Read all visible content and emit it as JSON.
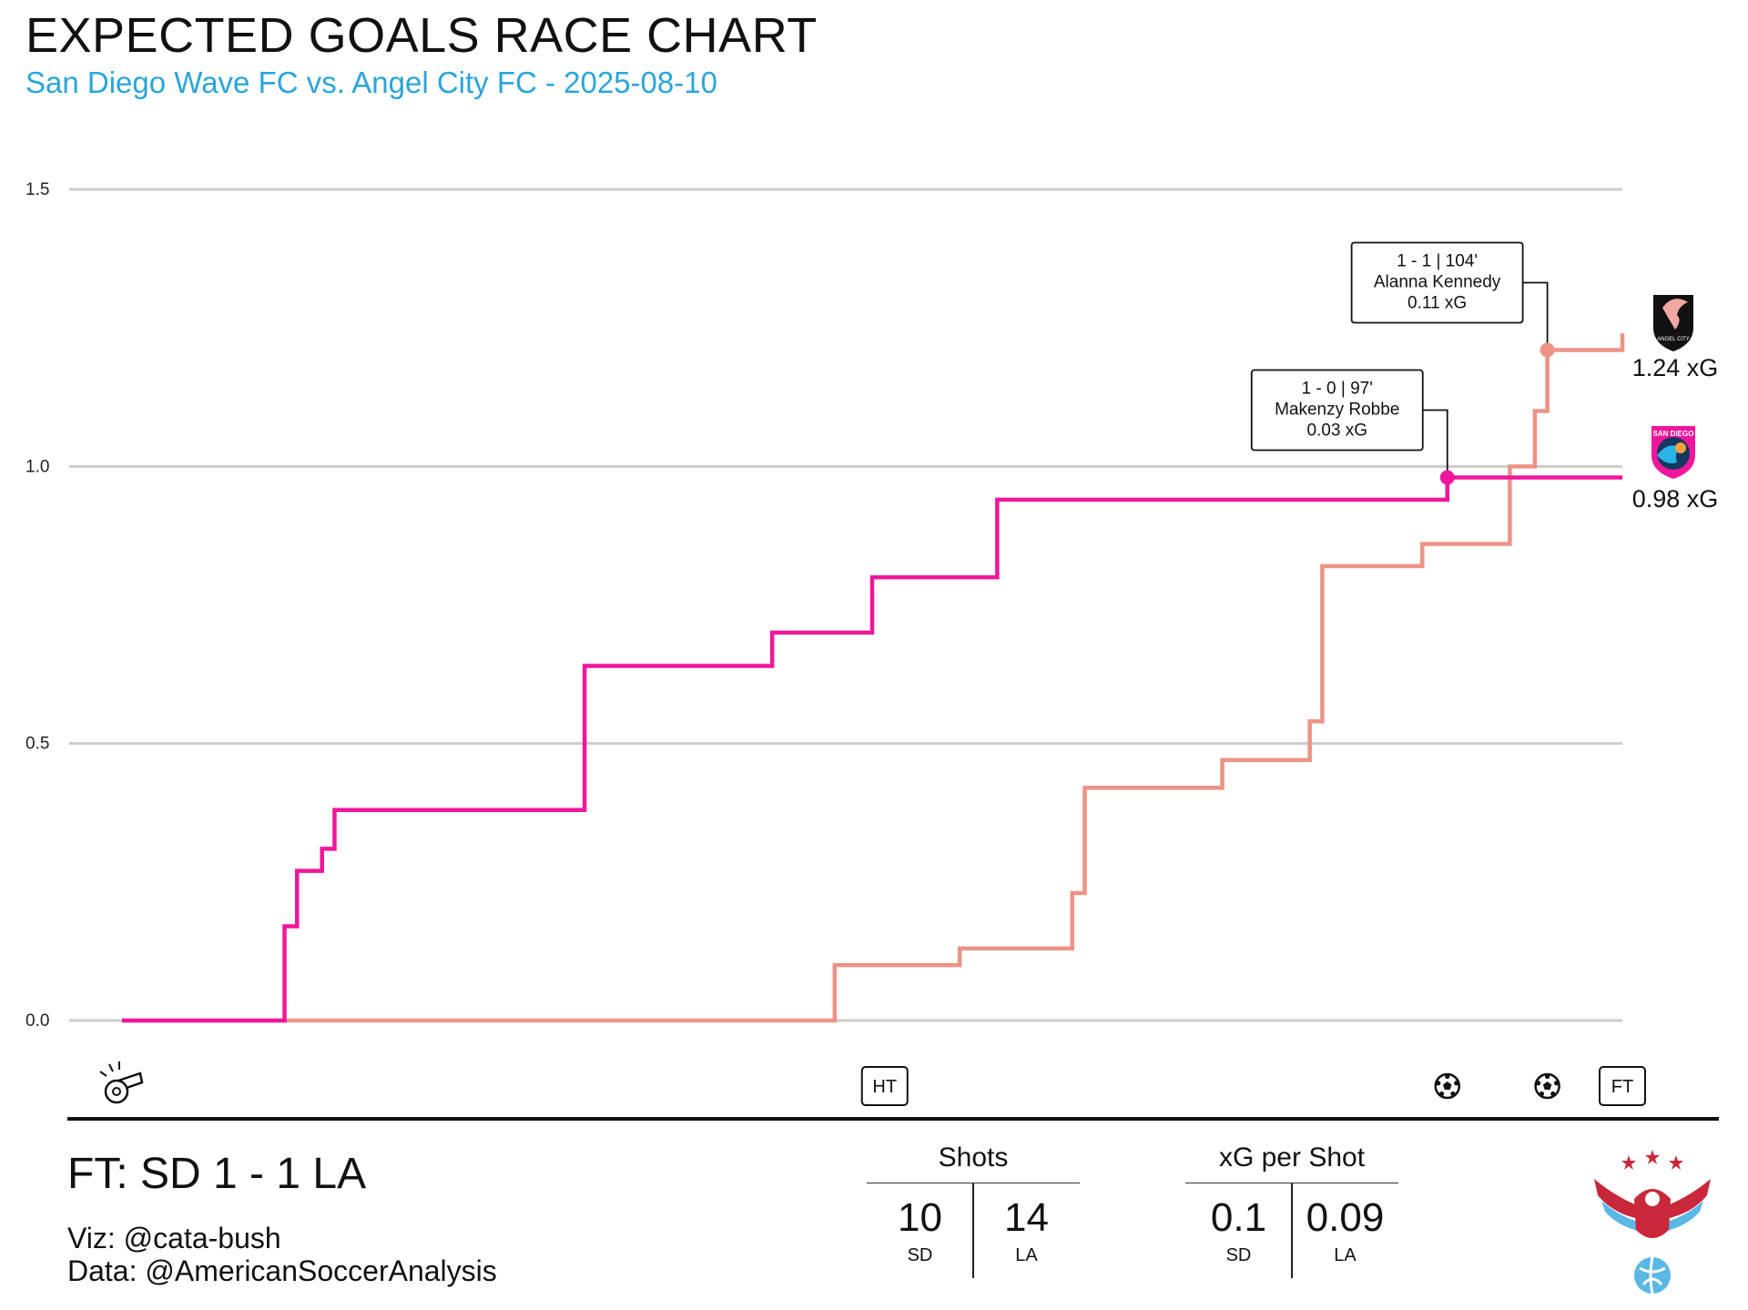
{
  "header": {
    "title": "EXPECTED GOALS RACE CHART",
    "subtitle": "San Diego Wave FC vs. Angel City FC - 2025-08-10"
  },
  "colors": {
    "sd": "#f0169b",
    "la": "#ec9386",
    "subtitle": "#2aa5d9",
    "grid": "#cccccc"
  },
  "chart_data": {
    "type": "line",
    "step": true,
    "title": "EXPECTED GOALS RACE CHART",
    "subtitle": "San Diego Wave FC vs. Angel City FC - 2025-08-10",
    "xlabel": "",
    "ylabel": "",
    "ylim": [
      0,
      1.5
    ],
    "xlim": [
      0,
      120
    ],
    "yticks": [
      "0.0",
      "0.5",
      "1.0",
      "1.5"
    ],
    "grid": true,
    "series": [
      {
        "name": "SD",
        "color": "#f0169b",
        "points": [
          [
            0,
            0
          ],
          [
            13,
            0.17
          ],
          [
            14,
            0.27
          ],
          [
            16,
            0.31
          ],
          [
            17,
            0.38
          ],
          [
            37,
            0.64
          ],
          [
            52,
            0.7
          ],
          [
            60,
            0.8
          ],
          [
            70,
            0.94
          ],
          [
            106,
            0.98
          ],
          [
            120,
            0.98
          ]
        ],
        "final_label": "0.98 xG"
      },
      {
        "name": "LA",
        "color": "#ec9386",
        "points": [
          [
            0,
            0
          ],
          [
            57,
            0.1
          ],
          [
            67,
            0.13
          ],
          [
            76,
            0.23
          ],
          [
            77,
            0.42
          ],
          [
            88,
            0.47
          ],
          [
            95,
            0.54
          ],
          [
            96,
            0.82
          ],
          [
            104,
            0.86
          ],
          [
            111,
            1.0
          ],
          [
            113,
            1.1
          ],
          [
            114,
            1.21
          ],
          [
            120,
            1.24
          ]
        ],
        "final_label": "1.24 xG"
      }
    ],
    "annotations": [
      {
        "team": "SD",
        "x": 106,
        "y": 0.98,
        "line1": "1 - 0  |  97'",
        "line2": "Makenzy Robbe",
        "line3": "0.03 xG"
      },
      {
        "team": "LA",
        "x": 114,
        "y": 1.21,
        "line1": "1 - 1  |  104'",
        "line2": "Alanna Kennedy",
        "line3": "0.11 xG"
      }
    ],
    "events": [
      {
        "x": 0,
        "type": "whistle"
      },
      {
        "x": 61,
        "type": "label",
        "text": "HT"
      },
      {
        "x": 106,
        "type": "ball"
      },
      {
        "x": 114,
        "type": "ball"
      },
      {
        "x": 120,
        "type": "label",
        "text": "FT"
      }
    ]
  },
  "footer": {
    "score": "FT:  SD 1  - 1 LA",
    "viz_credit": "Viz: @cata-bush",
    "data_credit": "Data: @AmericanSoccerAnalysis",
    "shots": {
      "title": "Shots",
      "sd_value": "10",
      "la_value": "14",
      "sd_label": "SD",
      "la_label": "LA"
    },
    "xg_per_shot": {
      "title": "xG per Shot",
      "sd_value": "0.1",
      "la_value": "0.09",
      "sd_label": "SD",
      "la_label": "LA"
    }
  },
  "logos": {
    "la_logo_text": "ANGEL CITY",
    "sd_logo_text": "SAN DIEGO"
  }
}
